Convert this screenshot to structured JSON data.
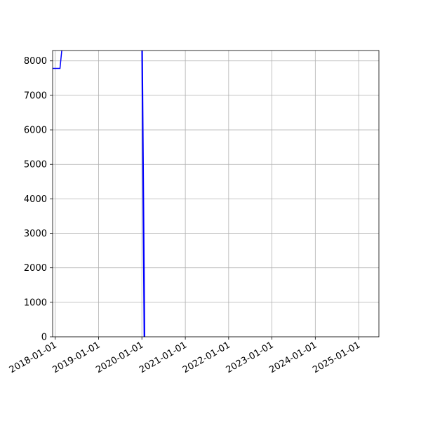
{
  "chart_data": {
    "type": "line",
    "title": "",
    "xlabel": "",
    "ylabel": "",
    "grid": true,
    "x_axis_type": "date",
    "xlim": [
      "2017-12-10",
      "2025-06-20"
    ],
    "ylim": [
      0,
      8300
    ],
    "x_ticks": [
      "2018-01-01",
      "2019-01-01",
      "2020-01-01",
      "2021-01-01",
      "2022-01-01",
      "2023-01-01",
      "2024-01-01",
      "2025-01-01"
    ],
    "y_ticks": [
      0,
      1000,
      2000,
      3000,
      4000,
      5000,
      6000,
      7000,
      8000
    ],
    "series": [
      {
        "color": "#0000ff",
        "points": [
          {
            "x": "2017-12-10",
            "y": 7780
          },
          {
            "x": "2018-02-10",
            "y": 7780
          },
          {
            "x": "2018-02-25",
            "y": 8300
          }
        ]
      },
      {
        "color": "#0000ff",
        "points": [
          {
            "x": "2020-01-01",
            "y": 8300
          },
          {
            "x": "2020-01-20",
            "y": 0
          },
          {
            "x": "2020-01-05",
            "y": 8300
          },
          {
            "x": "2020-01-25",
            "y": 0
          }
        ]
      }
    ]
  }
}
